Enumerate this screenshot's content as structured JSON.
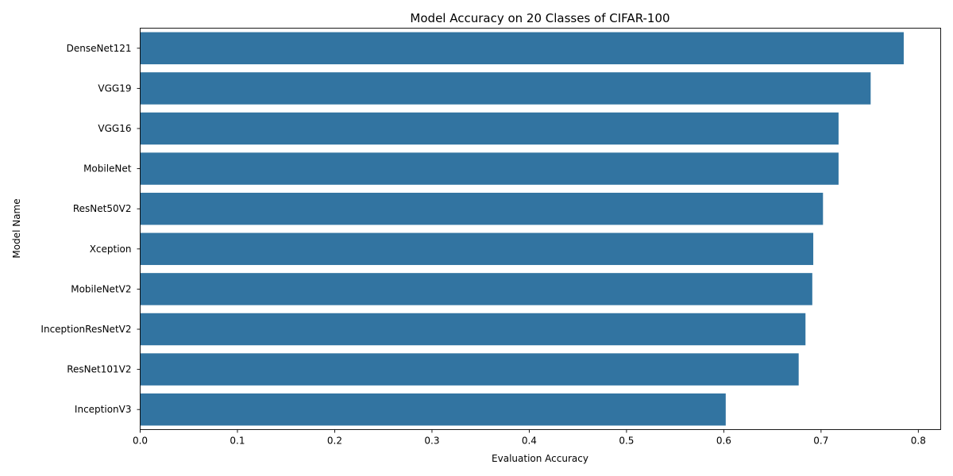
{
  "chart_data": {
    "type": "bar",
    "orientation": "horizontal",
    "title": "Model Accuracy on 20 Classes of CIFAR-100",
    "xlabel": "Evaluation Accuracy",
    "ylabel": "Model Name",
    "categories": [
      "DenseNet121",
      "VGG19",
      "VGG16",
      "MobileNet",
      "ResNet50V2",
      "Xception",
      "MobileNetV2",
      "InceptionResNetV2",
      "ResNet101V2",
      "InceptionV3"
    ],
    "values": [
      0.785,
      0.751,
      0.718,
      0.718,
      0.702,
      0.692,
      0.691,
      0.684,
      0.677,
      0.602
    ],
    "xlim": [
      0,
      0.823
    ],
    "xticks": [
      "0.0",
      "0.1",
      "0.2",
      "0.3",
      "0.4",
      "0.5",
      "0.6",
      "0.7",
      "0.8"
    ],
    "bar_color": "#3274a1",
    "grid": false,
    "legend": false
  }
}
